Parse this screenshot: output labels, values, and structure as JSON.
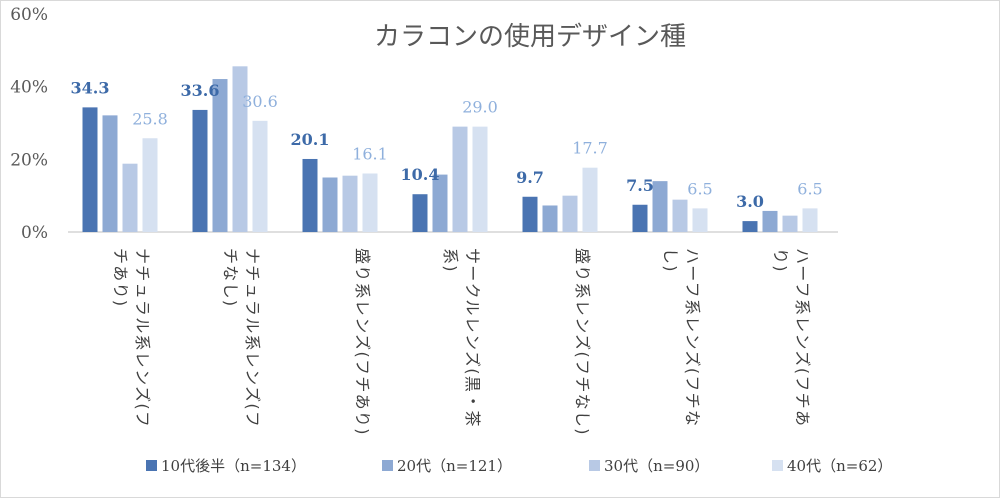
{
  "chart_data": {
    "type": "bar",
    "title": "カラコンの使用デザイン種",
    "ylim": [
      0,
      60
    ],
    "yticks": [
      "0%",
      "20%",
      "40%",
      "60%"
    ],
    "ytick_values": [
      0,
      20,
      40,
      60
    ],
    "grid": false,
    "legend_position": "bottom",
    "categories": [
      [
        "ナチュラル系レンズ(フ",
        "チあり)"
      ],
      [
        "ナチュラル系レンズ(フ",
        "チなし)"
      ],
      [
        "盛り系レンズ(フチあり)"
      ],
      [
        "サークルレンズ(黒・茶",
        "系)"
      ],
      [
        "盛り系レンズ(フチなし)"
      ],
      [
        "ハーフ系レンズ(フチな",
        "し)"
      ],
      [
        "ハーフ系レンズ(フチあ",
        "り)"
      ]
    ],
    "series": [
      {
        "name": "10代後半（n=134）",
        "color": "#4a74b2",
        "label_color": "#3d6aa8",
        "label_bold": true,
        "values": [
          34.3,
          33.6,
          20.1,
          10.4,
          9.7,
          7.5,
          3.0
        ],
        "labels": [
          "34.3",
          "33.6",
          "20.1",
          "10.4",
          "9.7",
          "7.5",
          "3.0"
        ]
      },
      {
        "name": "20代（n=121）",
        "color": "#8da9d3",
        "label_color": null,
        "label_bold": false,
        "values": [
          32.1,
          42.1,
          15.0,
          15.8,
          7.3,
          14.0,
          5.8
        ],
        "labels": [
          null,
          null,
          null,
          null,
          null,
          null,
          null
        ]
      },
      {
        "name": "30代（n=90）",
        "color": "#b8c9e5",
        "label_color": null,
        "label_bold": false,
        "values": [
          18.8,
          45.6,
          15.5,
          29.0,
          10.0,
          8.9,
          4.5
        ],
        "labels": [
          null,
          null,
          null,
          null,
          null,
          null,
          null
        ]
      },
      {
        "name": "40代（n=62）",
        "color": "#d6e1f1",
        "label_color": "#8fb0dc",
        "label_bold": false,
        "values": [
          25.8,
          30.6,
          16.1,
          29.0,
          17.7,
          6.5,
          6.5
        ],
        "labels": [
          "25.8",
          "30.6",
          "16.1",
          "29.0",
          "17.7",
          "6.5",
          "6.5"
        ]
      }
    ]
  }
}
